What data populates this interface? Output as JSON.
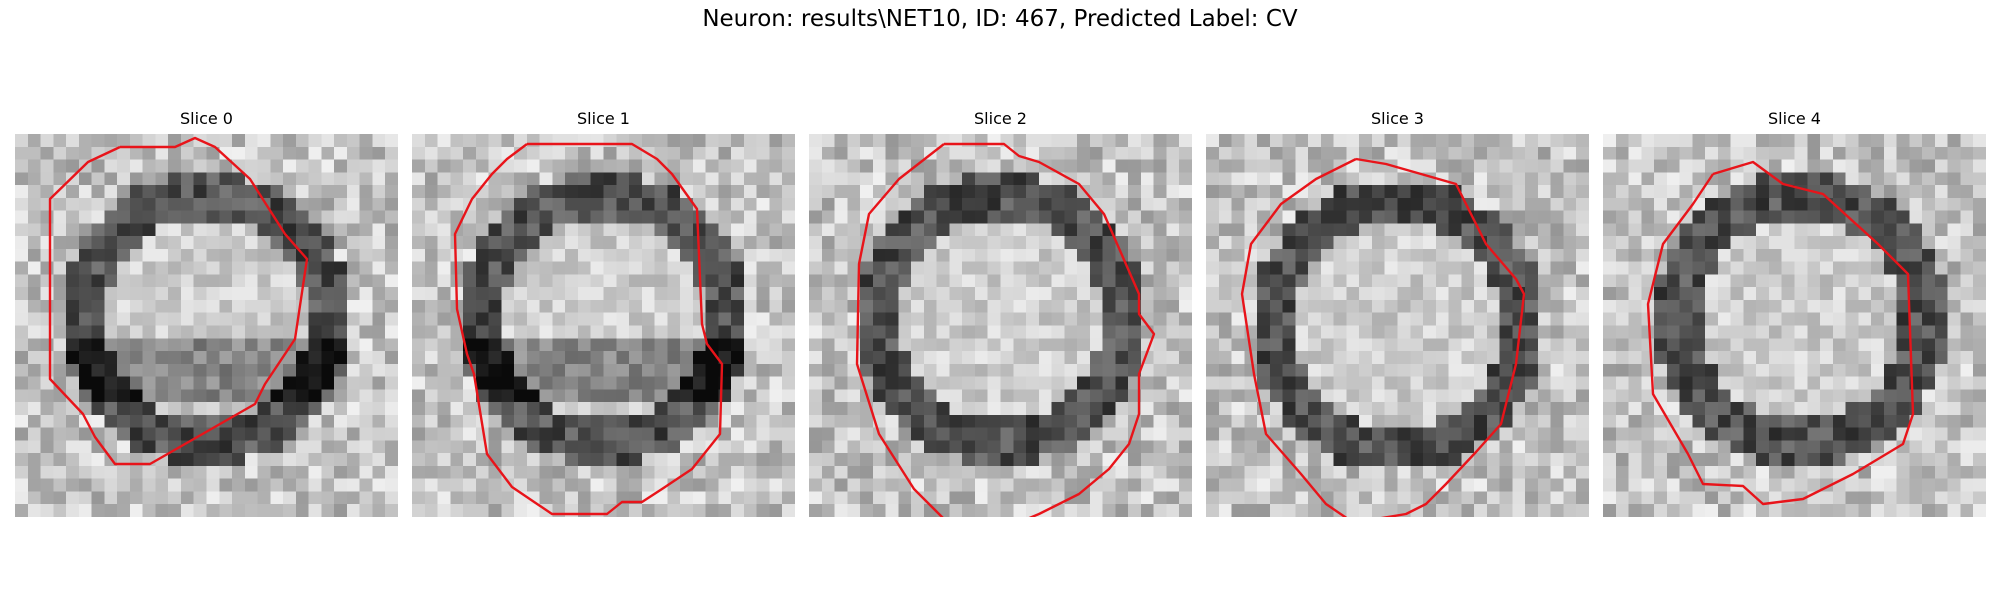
{
  "figure": {
    "title": "Neuron: results\\NET10, ID: 467, Predicted Label: CV",
    "contour_color": "#e8141a"
  },
  "slices": [
    {
      "title": "Slice 0"
    },
    {
      "title": "Slice 1"
    },
    {
      "title": "Slice 2"
    },
    {
      "title": "Slice 3"
    },
    {
      "title": "Slice 4"
    }
  ]
}
